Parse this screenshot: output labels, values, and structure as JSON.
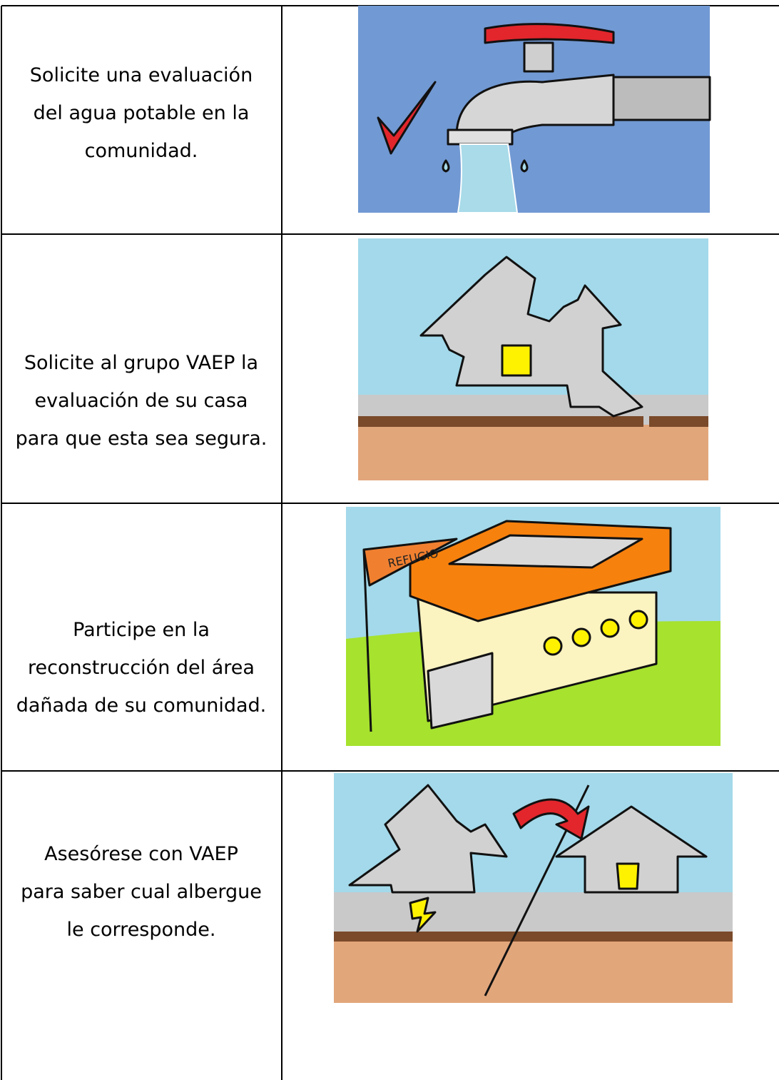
{
  "rows": [
    {
      "lines": [
        "Solicite una evaluación",
        "del agua potable en la",
        "comunidad."
      ]
    },
    {
      "lines": [
        "Solicite al grupo VAEP la",
        "evaluación de su casa",
        "para que esta sea segura."
      ]
    },
    {
      "lines": [
        "Participe en  la",
        "reconstrucción del área",
        "dañada de su comunidad."
      ],
      "flag": "REFUGIO"
    },
    {
      "lines": [
        "Asesórese con VAEP",
        "para saber cual albergue",
        "le corresponde."
      ]
    }
  ]
}
